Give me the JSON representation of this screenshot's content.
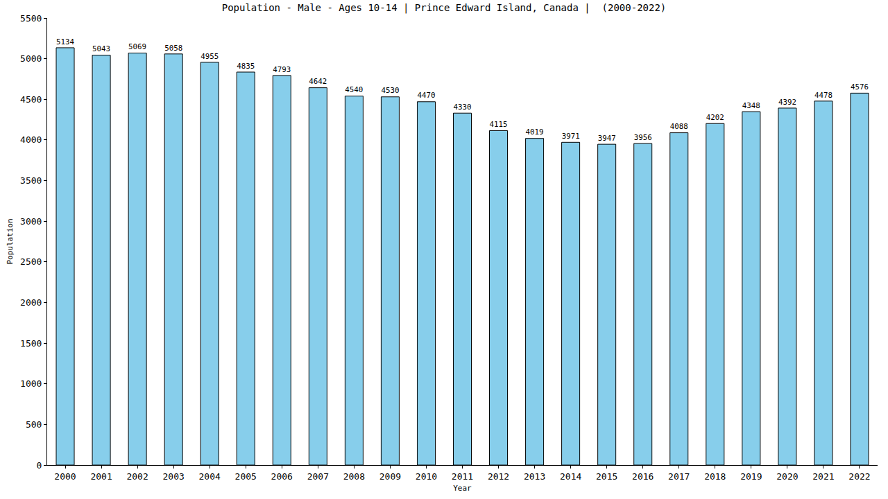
{
  "chart_data": {
    "type": "bar",
    "title": "Population - Male - Ages 10-14 | Prince Edward Island, Canada |  (2000-2022)",
    "x_label": "Year",
    "y_label": "Population",
    "categories": [
      "2000",
      "2001",
      "2002",
      "2003",
      "2004",
      "2005",
      "2006",
      "2007",
      "2008",
      "2009",
      "2010",
      "2011",
      "2012",
      "2013",
      "2014",
      "2015",
      "2016",
      "2017",
      "2018",
      "2019",
      "2020",
      "2021",
      "2022"
    ],
    "values": [
      5134,
      5043,
      5069,
      5058,
      4955,
      4835,
      4793,
      4642,
      4540,
      4530,
      4470,
      4330,
      4115,
      4019,
      3971,
      3947,
      3956,
      4088,
      4202,
      4348,
      4392,
      4478,
      4576
    ],
    "color": "#87ceeb",
    "ylim": [
      0,
      5500
    ],
    "yticks": [
      0,
      500,
      1000,
      1500,
      2000,
      2500,
      3000,
      3500,
      4000,
      4500,
      5000,
      5500
    ],
    "grid": false,
    "data_labels": true
  }
}
